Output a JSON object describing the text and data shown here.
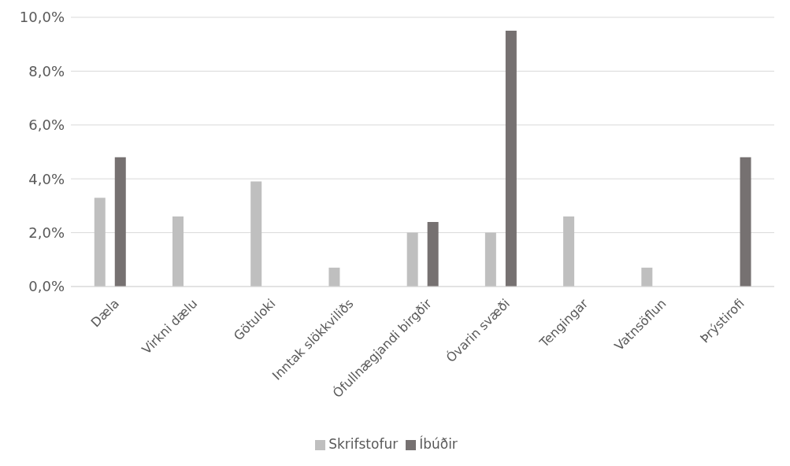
{
  "chart_data": {
    "type": "bar",
    "categories": [
      "Dæla",
      "Virkni dælu",
      "Götuloki",
      "Inntak slökkviliðs",
      "Ófullnægjandi birgðir",
      "Óvarin svæði",
      "Tengingar",
      "Vatnsöflun",
      "Þrýstirofi"
    ],
    "series": [
      {
        "name": "Skrifstofur",
        "color": "#bfbfbf",
        "values": [
          3.3,
          2.6,
          3.9,
          0.7,
          2.0,
          2.0,
          2.6,
          0.7,
          null
        ]
      },
      {
        "name": "Íbúðir",
        "color": "#767171",
        "values": [
          4.8,
          null,
          null,
          null,
          2.4,
          9.5,
          null,
          null,
          4.8
        ]
      }
    ],
    "ylim": [
      0,
      10
    ],
    "yticks": [
      {
        "value": 0,
        "label": "0,0%"
      },
      {
        "value": 2,
        "label": "2,0%"
      },
      {
        "value": 4,
        "label": "4,0%"
      },
      {
        "value": 6,
        "label": "6,0%"
      },
      {
        "value": 8,
        "label": "8,0%"
      },
      {
        "value": 10,
        "label": "10,0%"
      }
    ],
    "grid": "y",
    "legend": "bottom"
  }
}
